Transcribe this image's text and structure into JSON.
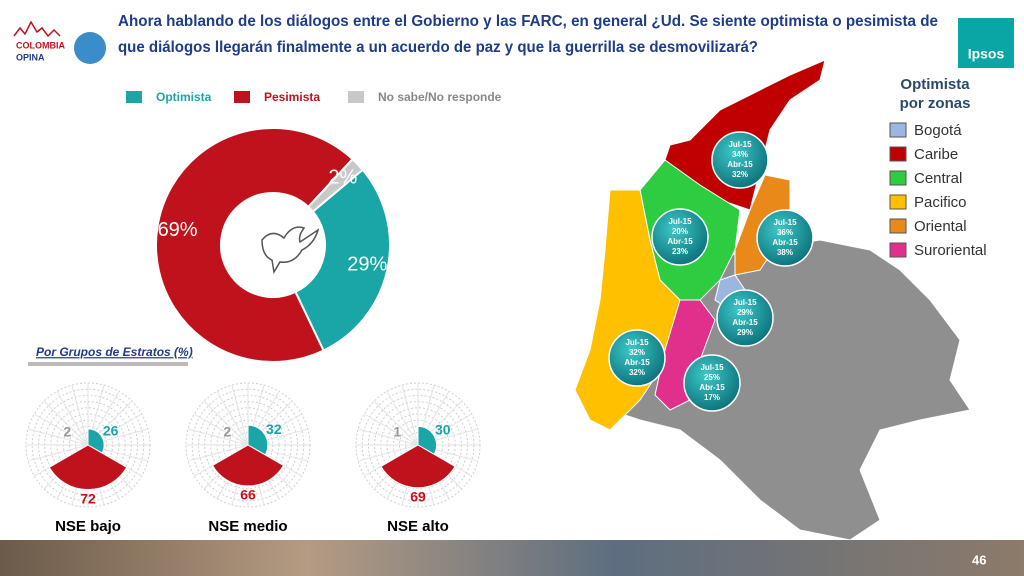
{
  "header": {
    "title_lines": [
      "Ahora hablando de los diálogos entre el Gobierno y las FARC, en general ¿Ud. Se siente optimista o pesimista de",
      "que diálogos llegarán finalmente a un acuerdo de paz y que la guerrilla se desmovilizará?"
    ],
    "logo_left": [
      "COLOMBIA",
      "OPINA"
    ],
    "logo_right": "Ipsos"
  },
  "chart_data": [
    {
      "type": "pie",
      "donut": true,
      "categories": [
        "Optimista",
        "Pesimista",
        "No sabe/No responde"
      ],
      "colors": [
        "#1aa6a6",
        "#c0121c",
        "#c8c8c8"
      ],
      "values": [
        29,
        69,
        2
      ],
      "value_labels": [
        "29%",
        "69%",
        "2%"
      ]
    },
    {
      "type": "polar",
      "title": "NSE bajo",
      "values": [
        26,
        72,
        2
      ],
      "colors": [
        "#1aa6a6",
        "#c0121c",
        "#9a9a9a"
      ],
      "rlim": [
        0,
        100
      ]
    },
    {
      "type": "polar",
      "title": "NSE medio",
      "values": [
        32,
        66,
        2
      ],
      "colors": [
        "#1aa6a6",
        "#c0121c",
        "#9a9a9a"
      ],
      "rlim": [
        0,
        100
      ]
    },
    {
      "type": "polar",
      "title": "NSE alto",
      "values": [
        30,
        69,
        1
      ],
      "colors": [
        "#1aa6a6",
        "#c0121c",
        "#9a9a9a"
      ],
      "rlim": [
        0,
        100
      ]
    }
  ],
  "section_title": "Por Grupos de Estratos (%)",
  "map": {
    "title_lines": [
      "Optimista",
      "por zonas"
    ],
    "periods": [
      "Jul-15",
      "Abr-15"
    ],
    "zones": [
      {
        "name": "Bogotá",
        "color": "#9bb7e0",
        "values": [
          29,
          29
        ],
        "value_labels": [
          "29%",
          "29%"
        ]
      },
      {
        "name": "Caribe",
        "color": "#c00000",
        "values": [
          34,
          32
        ],
        "value_labels": [
          "34%",
          "32%"
        ]
      },
      {
        "name": "Central",
        "color": "#2ecc40",
        "values": [
          20,
          23
        ],
        "value_labels": [
          "20%",
          "23%"
        ]
      },
      {
        "name": "Pacifico",
        "color": "#ffc000",
        "values": [
          32,
          32
        ],
        "value_labels": [
          "32%",
          "32%"
        ]
      },
      {
        "name": "Oriental",
        "color": "#e8891a",
        "values": [
          36,
          38
        ],
        "value_labels": [
          "36%",
          "38%"
        ]
      },
      {
        "name": "Suroriental",
        "color": "#e0308c",
        "values": [
          25,
          17
        ],
        "value_labels": [
          "25%",
          "17%"
        ]
      }
    ]
  },
  "footer": {
    "page": "46"
  }
}
